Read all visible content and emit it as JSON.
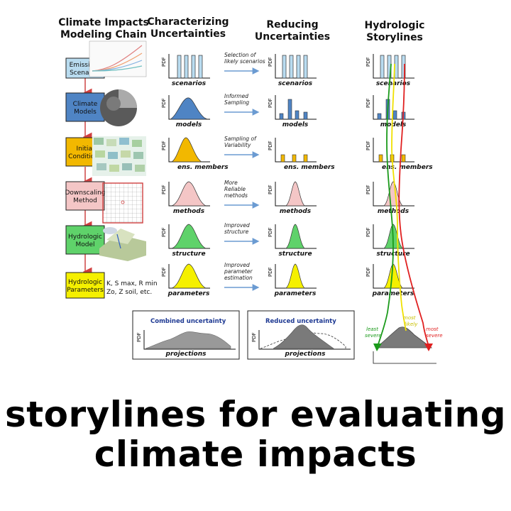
{
  "headers": {
    "chain": [
      "Climate Impacts",
      "Modeling Chain"
    ],
    "characterizing": [
      "Characterizing",
      "Uncertainties"
    ],
    "reducing": [
      "Reducing",
      "Uncertainties"
    ],
    "storylines": [
      "Hydrologic",
      "Storylines"
    ]
  },
  "chain_boxes": [
    {
      "lines": [
        "Emissions",
        "Scenarios"
      ],
      "color": "#b9dcf0"
    },
    {
      "lines": [
        "Climate",
        "Models"
      ],
      "color": "#4f84c4"
    },
    {
      "lines": [
        "Initial",
        "Conditions"
      ],
      "color": "#f2b800"
    },
    {
      "lines": [
        "Downscaling",
        "Method"
      ],
      "color": "#f4c6c6"
    },
    {
      "lines": [
        "Hydrologic",
        "Model"
      ],
      "color": "#5fd26a"
    },
    {
      "lines": [
        "Hydrologic",
        "Parameters"
      ],
      "color": "#f5f000"
    }
  ],
  "params_text": {
    "line1": "K, S max, R min",
    "line2": "Zo, Z soil, etc."
  },
  "pdf_label": "PDF",
  "rows": [
    {
      "label": "scenarios",
      "arrow": [
        "Selection of",
        "likely scenarios"
      ]
    },
    {
      "label": "models",
      "arrow": [
        "Informed",
        "Sampling"
      ]
    },
    {
      "label": "ens. members",
      "arrow": [
        "Sampling of",
        "Variability"
      ]
    },
    {
      "label": "methods",
      "arrow": [
        "More",
        "Reliable",
        "methods"
      ]
    },
    {
      "label": "structure",
      "arrow": [
        "Improved",
        "structure"
      ]
    },
    {
      "label": "parameters",
      "arrow": [
        "Improved",
        "parameter",
        "estimation"
      ]
    }
  ],
  "combined": {
    "title": "Combined uncertainty",
    "xlabel": "projections"
  },
  "reduced": {
    "title": "Reduced uncertainty",
    "xlabel": "projections"
  },
  "storyline_labels": {
    "least": [
      "least",
      "severe"
    ],
    "likely": [
      "most",
      "likely"
    ],
    "most": [
      "most",
      "severe"
    ]
  },
  "colors": {
    "least": "#1a9a1a",
    "likely": "#f0e800",
    "most": "#e02020"
  },
  "caption": [
    "storylines for evaluating",
    "climate impacts"
  ]
}
